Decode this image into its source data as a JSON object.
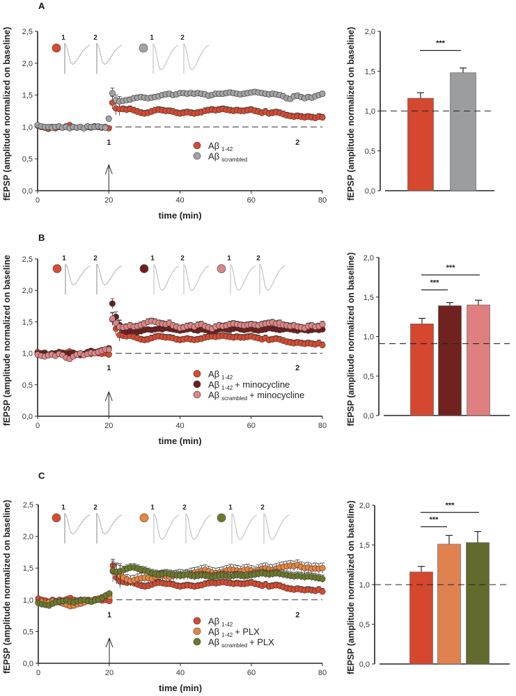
{
  "chart_data": [
    {
      "panel": "A",
      "type": "scatter",
      "xlabel": "time (min)",
      "ylabel": "fEPSP (amplitude normalized on baseline)",
      "xlim": [
        0,
        80
      ],
      "ylim": [
        0,
        2.5
      ],
      "xticks": [
        "0",
        "20",
        "40",
        "60",
        "80"
      ],
      "xtick_values": [
        0,
        20,
        40,
        60,
        80
      ],
      "yticks": [
        "0,0",
        "0,5",
        "1,0",
        "1,5",
        "2,0",
        "2,5"
      ],
      "ytick_values": [
        0,
        0.5,
        1,
        1.5,
        2,
        2.5
      ],
      "baseline": 1.0,
      "x_start": 0,
      "x_step": 1,
      "stim_time": 20,
      "stim_label": "1",
      "late_time": 73,
      "late_label": "2",
      "insets": [
        {
          "color": "#d94a30",
          "labels": [
            "1",
            "2"
          ]
        },
        {
          "color": "#a3a3a3",
          "labels": [
            "1",
            "2"
          ]
        }
      ],
      "series": [
        {
          "name": "Aβ",
          "sub": "1-42",
          "suffix": "",
          "color": "#d94a30",
          "sem": 0.05,
          "values": [
            1.02,
            1.0,
            0.99,
            0.97,
            1.0,
            0.98,
            1.0,
            0.99,
            1.01,
            1.03,
            1.0,
            0.99,
            1.0,
            0.98,
            1.0,
            0.99,
            1.01,
            1.0,
            0.99,
            1.0,
            0.98,
            1.38,
            1.29,
            1.28,
            1.28,
            1.27,
            1.28,
            1.26,
            1.24,
            1.22,
            1.21,
            1.22,
            1.24,
            1.26,
            1.27,
            1.26,
            1.25,
            1.25,
            1.24,
            1.22,
            1.21,
            1.22,
            1.23,
            1.22,
            1.21,
            1.22,
            1.23,
            1.25,
            1.26,
            1.27,
            1.26,
            1.27,
            1.28,
            1.27,
            1.26,
            1.25,
            1.26,
            1.25,
            1.25,
            1.26,
            1.27,
            1.25,
            1.24,
            1.22,
            1.24,
            1.21,
            1.22,
            1.23,
            1.22,
            1.2,
            1.18,
            1.17,
            1.16,
            1.17,
            1.16,
            1.15,
            1.16,
            1.15,
            1.14,
            1.16,
            1.15
          ]
        },
        {
          "name": "Aβ",
          "sub": "scrambled",
          "suffix": "",
          "color": "#a3a3a3",
          "sem": 0.04,
          "values": [
            1.03,
            1.01,
            1.0,
            1.0,
            0.99,
            1.0,
            1.01,
            0.99,
            1.0,
            0.98,
            1.0,
            0.99,
            1.0,
            0.98,
            1.01,
            1.0,
            1.0,
            1.01,
            1.0,
            0.99,
            1.13,
            1.53,
            1.42,
            1.4,
            1.41,
            1.42,
            1.43,
            1.45,
            1.46,
            1.47,
            1.46,
            1.45,
            1.46,
            1.47,
            1.48,
            1.5,
            1.51,
            1.52,
            1.5,
            1.51,
            1.53,
            1.53,
            1.52,
            1.53,
            1.52,
            1.53,
            1.52,
            1.51,
            1.49,
            1.5,
            1.52,
            1.52,
            1.52,
            1.53,
            1.54,
            1.53,
            1.52,
            1.51,
            1.52,
            1.53,
            1.54,
            1.55,
            1.54,
            1.53,
            1.52,
            1.51,
            1.52,
            1.51,
            1.5,
            1.48,
            1.45,
            1.44,
            1.48,
            1.49,
            1.47,
            1.45,
            1.47,
            1.46,
            1.48,
            1.5,
            1.52
          ]
        }
      ]
    },
    {
      "panel": "A",
      "type": "bar",
      "ylabel": "fEPSP (amplitude normalized on baseline)",
      "ylim": [
        0,
        2.0
      ],
      "yticks": [
        "0,0",
        "0,5",
        "1,0",
        "1,5",
        "2,0"
      ],
      "ytick_values": [
        0,
        0.5,
        1,
        1.5,
        2
      ],
      "reference_line": 1.0,
      "bars": [
        {
          "group": "Aβ 1-42",
          "value": 1.16,
          "error": 0.07,
          "color": "#d5472f"
        },
        {
          "group": "Aβ scrambled",
          "value": 1.48,
          "error": 0.06,
          "color": "#9b9d9e"
        }
      ],
      "significance": [
        {
          "from": 0,
          "to": 1,
          "level": 1.76,
          "label": "***"
        }
      ]
    },
    {
      "panel": "B",
      "type": "scatter",
      "xlabel": "time (min)",
      "ylabel": "fEPSP (amplitude normalized on baseline",
      "xlim": [
        0,
        80
      ],
      "ylim": [
        0,
        2.5
      ],
      "xticks": [
        "0",
        "20",
        "40",
        "60",
        "80"
      ],
      "xtick_values": [
        0,
        20,
        40,
        60,
        80
      ],
      "yticks": [
        "0,0",
        "0,5",
        "1,0",
        "1,5",
        "2,0",
        "2,5"
      ],
      "ytick_values": [
        0,
        0.5,
        1,
        1.5,
        2,
        2.5
      ],
      "baseline": 1.0,
      "x_start": 0,
      "x_step": 1,
      "stim_time": 20,
      "stim_label": "1",
      "late_time": 73,
      "late_label": "2",
      "insets": [
        {
          "color": "#d94a30",
          "labels": [
            "1",
            "2"
          ]
        },
        {
          "color": "#6e1f1c",
          "labels": [
            "1",
            "2"
          ]
        },
        {
          "color": "#e08585",
          "labels": [
            "1",
            "2"
          ]
        }
      ],
      "series": [
        {
          "name": "Aβ",
          "sub": "1-42",
          "suffix": "",
          "color": "#d94a30",
          "sem": 0.05,
          "values": [
            1.02,
            1.0,
            0.99,
            0.97,
            1.0,
            0.98,
            1.0,
            0.99,
            1.01,
            1.03,
            1.0,
            0.99,
            1.0,
            0.98,
            1.0,
            0.99,
            1.01,
            1.0,
            0.99,
            1.0,
            0.98,
            1.54,
            1.39,
            1.29,
            1.28,
            1.27,
            1.28,
            1.26,
            1.24,
            1.22,
            1.21,
            1.22,
            1.24,
            1.26,
            1.27,
            1.26,
            1.25,
            1.25,
            1.24,
            1.22,
            1.21,
            1.22,
            1.23,
            1.22,
            1.21,
            1.22,
            1.23,
            1.25,
            1.26,
            1.27,
            1.26,
            1.27,
            1.28,
            1.27,
            1.26,
            1.25,
            1.26,
            1.25,
            1.25,
            1.26,
            1.27,
            1.25,
            1.24,
            1.22,
            1.24,
            1.21,
            1.22,
            1.23,
            1.22,
            1.2,
            1.18,
            1.17,
            1.16,
            1.17,
            1.16,
            1.15,
            1.16,
            1.15,
            1.14,
            1.16,
            1.13
          ]
        },
        {
          "name": "Aβ",
          "sub": "1-42",
          "suffix": "+ minocycline",
          "color": "#6e1f1c",
          "sem": 0.04,
          "values": [
            1.0,
            0.99,
            1.01,
            0.98,
            0.99,
            1.0,
            1.02,
            1.01,
            0.99,
            1.0,
            1.01,
            0.98,
            0.97,
            0.99,
            1.02,
            1.04,
            1.02,
            1.03,
            1.05,
            1.06,
            1.08,
            1.79,
            1.58,
            1.45,
            1.36,
            1.34,
            1.35,
            1.36,
            1.34,
            1.35,
            1.37,
            1.38,
            1.37,
            1.38,
            1.39,
            1.38,
            1.4,
            1.39,
            1.38,
            1.37,
            1.36,
            1.37,
            1.38,
            1.39,
            1.37,
            1.36,
            1.38,
            1.37,
            1.36,
            1.35,
            1.36,
            1.38,
            1.39,
            1.38,
            1.37,
            1.39,
            1.4,
            1.38,
            1.37,
            1.38,
            1.39,
            1.37,
            1.36,
            1.37,
            1.38,
            1.4,
            1.39,
            1.38,
            1.37,
            1.38,
            1.39,
            1.38,
            1.37,
            1.36,
            1.38,
            1.37,
            1.36,
            1.37,
            1.38,
            1.37,
            1.38
          ]
        },
        {
          "name": "Aβ",
          "sub": "scrambled",
          "suffix": "+ minocycline",
          "color": "#e08585",
          "sem": 0.05,
          "values": [
            0.98,
            0.96,
            0.95,
            0.97,
            0.98,
            0.96,
            0.99,
            0.97,
            0.93,
            0.91,
            0.95,
            0.98,
            1.0,
            0.97,
            0.99,
            1.01,
            1.0,
            1.02,
            1.04,
            1.06,
            1.06,
            1.55,
            1.48,
            1.42,
            1.41,
            1.42,
            1.44,
            1.42,
            1.43,
            1.45,
            1.47,
            1.5,
            1.51,
            1.5,
            1.48,
            1.47,
            1.46,
            1.48,
            1.44,
            1.42,
            1.4,
            1.41,
            1.43,
            1.44,
            1.42,
            1.45,
            1.46,
            1.43,
            1.41,
            1.39,
            1.42,
            1.44,
            1.43,
            1.44,
            1.46,
            1.47,
            1.46,
            1.45,
            1.44,
            1.45,
            1.46,
            1.45,
            1.44,
            1.46,
            1.47,
            1.48,
            1.49,
            1.47,
            1.48,
            1.45,
            1.44,
            1.43,
            1.44,
            1.42,
            1.41,
            1.4,
            1.43,
            1.44,
            1.42,
            1.43,
            1.46
          ]
        }
      ]
    },
    {
      "panel": "B",
      "type": "bar",
      "ylabel": "fEPSP (amplitude normalized on baseline)",
      "ylim": [
        0,
        2.0
      ],
      "yticks": [
        "0,0",
        "0,5",
        "1,0",
        "1,5",
        "2,0"
      ],
      "ytick_values": [
        0,
        0.5,
        1,
        1.5,
        2
      ],
      "reference_line": 0.91,
      "bars": [
        {
          "group": "Aβ 1-42",
          "value": 1.16,
          "error": 0.07,
          "color": "#d5472f"
        },
        {
          "group": "Aβ 1-42 + minocycline",
          "value": 1.39,
          "error": 0.04,
          "color": "#6f221e"
        },
        {
          "group": "Aβ scrambled + minocycline",
          "value": 1.4,
          "error": 0.06,
          "color": "#df7f80"
        }
      ],
      "significance": [
        {
          "from": 0,
          "to": 1,
          "level": 1.59,
          "label": "***"
        },
        {
          "from": 0,
          "to": 2,
          "level": 1.78,
          "label": "***"
        }
      ]
    },
    {
      "panel": "C",
      "type": "scatter",
      "xlabel": "time (min)",
      "ylabel": "fEPSP (amplitude normalized on baseline)",
      "xlim": [
        0,
        80
      ],
      "ylim": [
        0,
        2.5
      ],
      "xticks": [
        "0",
        "20",
        "40",
        "60",
        "80"
      ],
      "xtick_values": [
        0,
        20,
        40,
        60,
        80
      ],
      "yticks": [
        "0,0",
        "0,5",
        "1,0",
        "1,5",
        "2,0",
        "2,5"
      ],
      "ytick_values": [
        0,
        0.5,
        1,
        1.5,
        2,
        2.5
      ],
      "baseline": 1.0,
      "x_start": 0,
      "x_step": 1,
      "stim_time": 20,
      "stim_label": "1",
      "late_time": 73,
      "late_label": "2",
      "insets": [
        {
          "color": "#d94a30",
          "labels": [
            "1",
            "2"
          ]
        },
        {
          "color": "#e8853f",
          "labels": [
            "1",
            "2"
          ]
        },
        {
          "color": "#6b7a2a",
          "labels": [
            "1",
            "2"
          ]
        }
      ],
      "series": [
        {
          "name": "Aβ",
          "sub": "1-42",
          "suffix": "",
          "color": "#d94a30",
          "sem": 0.05,
          "values": [
            1.02,
            1.0,
            0.99,
            0.97,
            1.0,
            0.98,
            1.0,
            0.99,
            1.01,
            1.03,
            1.0,
            0.99,
            1.0,
            0.98,
            1.0,
            0.99,
            1.01,
            1.0,
            0.99,
            1.0,
            0.98,
            1.54,
            1.35,
            1.29,
            1.28,
            1.27,
            1.28,
            1.26,
            1.24,
            1.22,
            1.21,
            1.22,
            1.24,
            1.26,
            1.27,
            1.26,
            1.25,
            1.25,
            1.24,
            1.22,
            1.21,
            1.22,
            1.23,
            1.22,
            1.21,
            1.22,
            1.23,
            1.25,
            1.26,
            1.27,
            1.26,
            1.27,
            1.28,
            1.27,
            1.26,
            1.25,
            1.26,
            1.25,
            1.25,
            1.26,
            1.27,
            1.25,
            1.24,
            1.22,
            1.24,
            1.21,
            1.22,
            1.23,
            1.22,
            1.2,
            1.18,
            1.17,
            1.16,
            1.17,
            1.16,
            1.15,
            1.16,
            1.15,
            1.14,
            1.16,
            1.13
          ]
        },
        {
          "name": "Aβ",
          "sub": "1-42",
          "suffix": "+ PLX",
          "color": "#e8853f",
          "sem": 0.08,
          "values": [
            0.96,
            0.97,
            0.95,
            0.96,
            0.98,
            0.97,
            0.96,
            0.94,
            0.92,
            0.9,
            0.91,
            0.93,
            0.94,
            0.96,
            0.98,
            0.99,
            1.0,
            1.02,
            1.04,
            1.06,
            1.05,
            1.45,
            1.42,
            1.38,
            1.35,
            1.32,
            1.3,
            1.31,
            1.33,
            1.34,
            1.35,
            1.34,
            1.33,
            1.36,
            1.37,
            1.38,
            1.37,
            1.36,
            1.38,
            1.39,
            1.4,
            1.39,
            1.4,
            1.42,
            1.43,
            1.44,
            1.46,
            1.47,
            1.45,
            1.43,
            1.42,
            1.43,
            1.44,
            1.46,
            1.48,
            1.47,
            1.46,
            1.45,
            1.47,
            1.48,
            1.46,
            1.44,
            1.47,
            1.49,
            1.5,
            1.48,
            1.47,
            1.49,
            1.51,
            1.52,
            1.53,
            1.54,
            1.53,
            1.55,
            1.52,
            1.5,
            1.51,
            1.49,
            1.5,
            1.49,
            1.5
          ]
        },
        {
          "name": "Aβ",
          "sub": "scrambled",
          "suffix": "+ PLX",
          "color": "#6b7a2a",
          "sem": 0.06,
          "values": [
            0.95,
            0.93,
            0.92,
            0.91,
            0.94,
            0.96,
            0.97,
            0.98,
            0.99,
            0.97,
            0.96,
            0.98,
            0.99,
            1.0,
            0.98,
            0.97,
            0.99,
            1.0,
            1.03,
            1.07,
            1.1,
            1.46,
            1.44,
            1.45,
            1.47,
            1.49,
            1.51,
            1.51,
            1.49,
            1.47,
            1.46,
            1.44,
            1.42,
            1.41,
            1.4,
            1.41,
            1.42,
            1.41,
            1.4,
            1.39,
            1.38,
            1.39,
            1.4,
            1.38,
            1.37,
            1.38,
            1.39,
            1.38,
            1.37,
            1.36,
            1.37,
            1.38,
            1.39,
            1.38,
            1.37,
            1.38,
            1.39,
            1.38,
            1.37,
            1.38,
            1.39,
            1.4,
            1.41,
            1.42,
            1.41,
            1.4,
            1.41,
            1.42,
            1.41,
            1.4,
            1.39,
            1.38,
            1.37,
            1.38,
            1.37,
            1.36,
            1.37,
            1.36,
            1.35,
            1.34,
            1.33
          ]
        }
      ]
    },
    {
      "panel": "C",
      "type": "bar",
      "ylabel": "fEPSP (amplitude normalized on baseline)",
      "ylim": [
        0,
        2.0
      ],
      "yticks": [
        "0,0",
        "0,5",
        "1,0",
        "1,5",
        "2,0"
      ],
      "ytick_values": [
        0,
        0.5,
        1,
        1.5,
        2
      ],
      "reference_line": 1.0,
      "bars": [
        {
          "group": "Aβ 1-42",
          "value": 1.16,
          "error": 0.07,
          "color": "#d5472f"
        },
        {
          "group": "Aβ 1-42 + PLX",
          "value": 1.51,
          "error": 0.11,
          "color": "#e08250"
        },
        {
          "group": "Aβ scrambled + PLX",
          "value": 1.53,
          "error": 0.14,
          "color": "#626a2c"
        }
      ],
      "significance": [
        {
          "from": 0,
          "to": 1,
          "level": 1.73,
          "label": "***"
        },
        {
          "from": 0,
          "to": 2,
          "level": 1.91,
          "label": "***"
        }
      ]
    }
  ]
}
